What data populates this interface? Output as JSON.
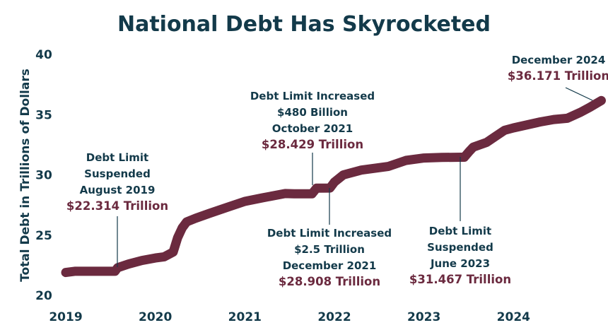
{
  "colors": {
    "text": "#133a4a",
    "line": "#6b2a3f",
    "highlight": "#6b2a3f"
  },
  "chart_data": {
    "type": "line",
    "title": "National Debt Has Skyrocketed",
    "xlabel": "",
    "ylabel": "Total Debt in Trillions of Dollars",
    "xlim": [
      2019.0,
      2025.0
    ],
    "ylim": [
      20,
      40
    ],
    "x_ticks": [
      {
        "value": 2019,
        "label": "2019"
      },
      {
        "value": 2020,
        "label": "2020"
      },
      {
        "value": 2021,
        "label": "2021"
      },
      {
        "value": 2022,
        "label": "2022"
      },
      {
        "value": 2023,
        "label": "2023"
      },
      {
        "value": 2024,
        "label": "2024"
      }
    ],
    "y_ticks": [
      {
        "value": 20,
        "label": "20"
      },
      {
        "value": 25,
        "label": "25"
      },
      {
        "value": 30,
        "label": "30"
      },
      {
        "value": 35,
        "label": "35"
      },
      {
        "value": 40,
        "label": "40"
      }
    ],
    "grid": false,
    "series": [
      {
        "x": [
          2019.0,
          2019.1,
          2019.2,
          2019.4,
          2019.55,
          2019.58,
          2019.7,
          2019.85,
          2020.0,
          2020.1,
          2020.15,
          2020.2,
          2020.25,
          2020.3,
          2020.35,
          2020.45,
          2020.6,
          2020.8,
          2021.0,
          2021.2,
          2021.45,
          2021.55,
          2021.75,
          2021.8,
          2021.95,
          2022.0,
          2022.1,
          2022.3,
          2022.6,
          2022.8,
          2023.0,
          2023.2,
          2023.42,
          2023.45,
          2023.5,
          2023.55,
          2023.7,
          2023.8,
          2023.9,
          2024.0,
          2024.3,
          2024.45,
          2024.6,
          2024.75,
          2024.85,
          2024.98
        ],
        "values": [
          21.9,
          22.0,
          22.0,
          22.0,
          22.0,
          22.3,
          22.6,
          22.9,
          23.1,
          23.2,
          23.4,
          23.6,
          24.8,
          25.6,
          26.1,
          26.4,
          26.8,
          27.3,
          27.8,
          28.1,
          28.45,
          28.429,
          28.429,
          28.9,
          28.908,
          29.4,
          30.0,
          30.4,
          30.7,
          31.2,
          31.4,
          31.45,
          31.467,
          31.467,
          31.9,
          32.3,
          32.7,
          33.2,
          33.7,
          33.9,
          34.4,
          34.6,
          34.7,
          35.2,
          35.6,
          36.171
        ]
      }
    ],
    "annotations": [
      {
        "lines": [
          "Debt Limit",
          "Suspended",
          "August 2019"
        ],
        "value": "$22.314 Trillion",
        "x": 2019.58,
        "y": 22.314
      },
      {
        "lines": [
          "Debt Limit Increased",
          "$480 Billion",
          "October 2021"
        ],
        "value": "$28.429 Trillion",
        "x": 2021.8,
        "y": 28.429
      },
      {
        "lines": [
          "Debt Limit Increased",
          "$2.5 Trillion",
          "December 2021"
        ],
        "value": "$28.908 Trillion",
        "x": 2021.97,
        "y": 28.908
      },
      {
        "lines": [
          "Debt Limit",
          "Suspended",
          "June 2023"
        ],
        "value": "$31.467 Trillion",
        "x": 2023.45,
        "y": 31.467
      },
      {
        "lines": [
          "December 2024"
        ],
        "value": "$36.171 Trillion",
        "x": 2024.98,
        "y": 36.171
      }
    ]
  }
}
